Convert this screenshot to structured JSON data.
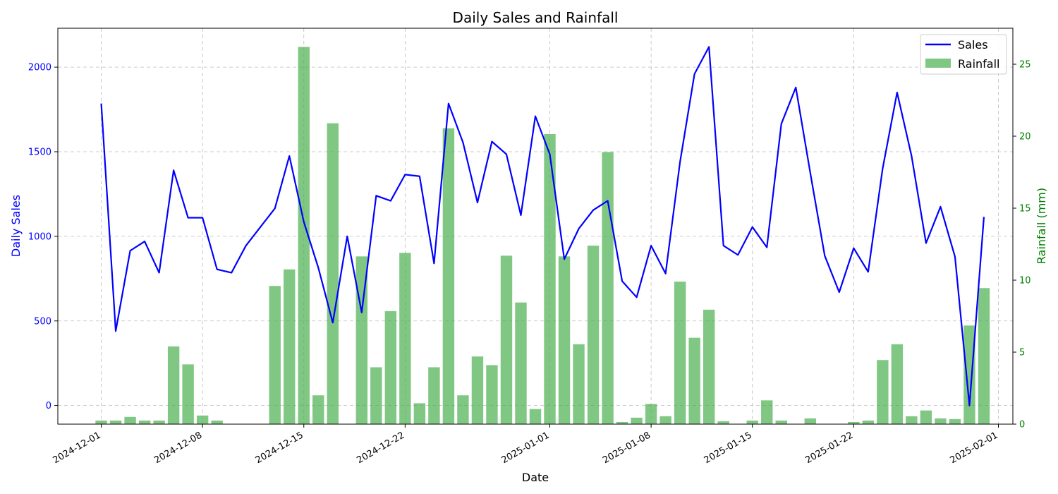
{
  "chart_data": {
    "type": "bar+line",
    "title": "Daily Sales and Rainfall",
    "xlabel": "Date",
    "ylabel_left": "Daily Sales",
    "ylabel_right": "Rainfall (mm)",
    "x_start": "2024-12-01",
    "x_end": "2025-01-31",
    "xlim": [
      "2024-11-28",
      "2025-02-02"
    ],
    "ylim_left": [
      -110,
      2230
    ],
    "ylim_right": [
      0,
      27.5
    ],
    "yticks_left": [
      0,
      500,
      1000,
      1500,
      2000
    ],
    "yticks_right": [
      0,
      5,
      10,
      15,
      20,
      25
    ],
    "xticks": [
      "2024-12-01",
      "2024-12-08",
      "2024-12-15",
      "2024-12-22",
      "2025-01-01",
      "2025-01-08",
      "2025-01-15",
      "2025-01-22",
      "2025-02-01"
    ],
    "grid": true,
    "legend_position": "top-right",
    "colors": {
      "sales": "#0000ff",
      "rainfall": "#4caf50",
      "left_axis": "#0000ff",
      "right_axis": "#008000",
      "grid": "#bdbdbd"
    },
    "series": [
      {
        "name": "Sales",
        "kind": "line",
        "axis": "left",
        "values": [
          1785,
          440,
          915,
          970,
          785,
          1390,
          1110,
          1110,
          805,
          785,
          945,
          1055,
          1165,
          1475,
          1085,
          815,
          490,
          1000,
          550,
          1240,
          1210,
          1365,
          1355,
          840,
          1785,
          1555,
          1200,
          1560,
          1485,
          1125,
          1710,
          1485,
          865,
          1045,
          1155,
          1210,
          735,
          640,
          945,
          780,
          1440,
          1960,
          2120,
          945,
          890,
          1055,
          935,
          1665,
          1880,
          1375,
          885,
          670,
          930,
          790,
          1400,
          1850,
          1475,
          960,
          1175,
          880,
          0,
          1115
        ]
      },
      {
        "name": "Rainfall",
        "kind": "bar",
        "axis": "right",
        "values": [
          0.25,
          0.25,
          0.5,
          0.25,
          0.25,
          5.4,
          4.15,
          0.6,
          0.25,
          0,
          0,
          0,
          9.6,
          10.75,
          26.2,
          2.0,
          20.9,
          0,
          11.65,
          3.95,
          7.85,
          11.9,
          1.45,
          3.95,
          20.55,
          2.0,
          4.7,
          4.1,
          11.7,
          8.45,
          1.05,
          20.15,
          11.65,
          5.55,
          12.4,
          18.9,
          0.15,
          0.45,
          1.4,
          0.55,
          9.9,
          6.0,
          7.95,
          0.2,
          0,
          0.25,
          1.65,
          0.25,
          0,
          0.4,
          0,
          0,
          0.15,
          0.25,
          4.45,
          5.55,
          0.55,
          0.95,
          0.4,
          0.35,
          6.85,
          9.45
        ]
      }
    ]
  }
}
